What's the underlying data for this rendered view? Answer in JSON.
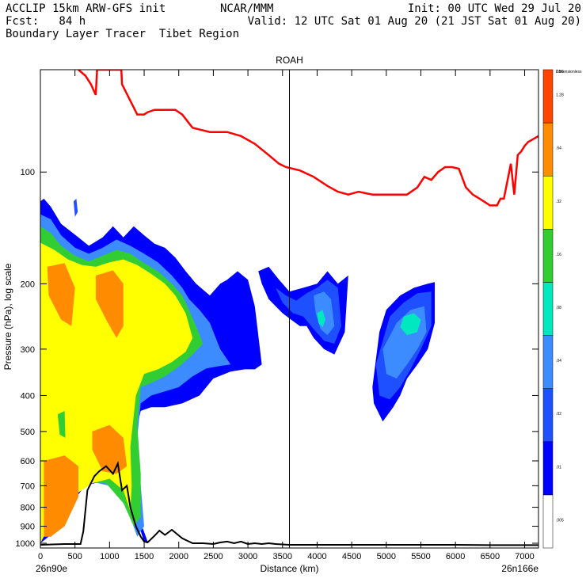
{
  "header": {
    "line1_left": "ACCLIP 15km ARW-GFS init",
    "line1_center": "NCAR/MMM",
    "line1_right": "Init: 00 UTC Wed 29 Jul 20",
    "line2_left": "Fcst:   84 h",
    "line2_right": "Valid: 12 UTC Sat 01 Aug 20 (21 JST Sat 01 Aug 20)",
    "line3_left": "Boundary Layer Tracer  Tibet Region"
  },
  "chart_data": {
    "type": "heatmap",
    "title": "ROAH",
    "xlabel": "Distance (km)",
    "ylabel": "Pressure (hPa), log scale",
    "x_start_label": "26n90e",
    "x_end_label": "26n166e",
    "xlim": [
      0,
      7200
    ],
    "ylim": [
      1030,
      53
    ],
    "y_scale": "log",
    "x_ticks": [
      0,
      500,
      1000,
      1500,
      2000,
      2500,
      3000,
      3500,
      4000,
      4500,
      5000,
      5500,
      6000,
      6500,
      7000
    ],
    "y_ticks": [
      100,
      200,
      300,
      400,
      500,
      600,
      700,
      800,
      900,
      1000
    ],
    "vertical_marker_x": 3600,
    "colorbar": {
      "levels": [
        ".005",
        ".01",
        ".02",
        ".04",
        ".08",
        ".16",
        ".32",
        ".64",
        "1.28",
        "2.56",
        "Dimensionless"
      ],
      "colors": [
        "#ffffff",
        "#0000ff",
        "#1e50ff",
        "#3c8cff",
        "#00e8c0",
        "#32cd32",
        "#ffff00",
        "#ff8c00",
        "#ff4500"
      ]
    },
    "tropopause_line": {
      "color": "#ff0000",
      "x": [
        550,
        650,
        730,
        800,
        820,
        1170,
        1180,
        1400,
        1500,
        1550,
        1650,
        1950,
        2050,
        2200,
        2450,
        2700,
        2900,
        3100,
        3300,
        3450,
        3550,
        3650,
        3750,
        3950,
        4150,
        4300,
        4450,
        4600,
        4800,
        5000,
        5300,
        5450,
        5550,
        5650,
        5750,
        5850,
        5950,
        6050,
        6150,
        6250,
        6350,
        6500,
        6600,
        6650,
        6700,
        6800,
        6850,
        6900,
        6950,
        7000,
        7050,
        7100,
        7200
      ],
      "y": [
        53,
        55,
        58,
        62,
        53,
        53,
        58,
        70,
        70,
        69,
        68,
        68,
        70,
        76,
        78,
        78,
        80,
        84,
        90,
        95,
        97,
        98,
        99,
        103,
        109,
        113,
        115,
        113,
        115,
        115,
        115,
        110,
        103,
        105,
        100,
        97,
        97,
        98,
        110,
        115,
        118,
        123,
        123,
        118,
        118,
        95,
        115,
        90,
        88,
        85,
        83,
        82,
        80
      ]
    },
    "terrain_line": {
      "color": "#000000",
      "x": [
        0,
        350,
        580,
        620,
        680,
        780,
        850,
        950,
        1050,
        1120,
        1180,
        1250,
        1300,
        1380,
        1450,
        1500,
        1550,
        1650,
        1720,
        1800,
        1900,
        2050,
        2200,
        2350,
        2500,
        2600,
        2700,
        2800,
        2900,
        3000,
        3100,
        3200,
        3300,
        3400,
        3600,
        4000,
        4500,
        5000,
        5500,
        6000,
        6500,
        7000,
        7200
      ],
      "y": [
        1010,
        1005,
        1005,
        930,
        720,
        660,
        640,
        620,
        650,
        610,
        720,
        700,
        800,
        900,
        960,
        990,
        995,
        955,
        925,
        950,
        920,
        970,
        1000,
        1000,
        1005,
        995,
        990,
        1000,
        990,
        1005,
        1000,
        1005,
        1000,
        1005,
        1010,
        1010,
        1010,
        1010,
        1010,
        1010,
        1012,
        1012,
        1012
      ]
    },
    "plumes": [
      {
        "level": 0.01,
        "x": [
          0,
          50,
          150,
          300,
          550,
          700,
          900,
          1050,
          1200,
          1350,
          1500,
          1650,
          1800,
          1950,
          2100,
          2250,
          2450,
          2600,
          2700,
          2850,
          3000,
          3100,
          3200,
          3100,
          2950,
          2750,
          2500,
          2300,
          2050,
          1800,
          1600,
          1450,
          1380,
          1350,
          1380,
          1450,
          1550,
          1500,
          1350,
          1150,
          900,
          650,
          400,
          150,
          0
        ],
        "y": [
          120,
          118,
          124,
          138,
          150,
          158,
          150,
          140,
          150,
          140,
          148,
          156,
          160,
          170,
          185,
          200,
          215,
          200,
          195,
          185,
          195,
          230,
          330,
          340,
          340,
          345,
          360,
          400,
          420,
          430,
          430,
          440,
          500,
          650,
          800,
          880,
          990,
          995,
          800,
          700,
          680,
          700,
          800,
          950,
          1000
        ]
      },
      {
        "level": 0.04,
        "x": [
          0,
          150,
          300,
          500,
          700,
          900,
          1100,
          1300,
          1500,
          1700,
          1900,
          2050,
          2150,
          2300,
          2450,
          2600,
          2750,
          2600,
          2400,
          2200,
          2000,
          1800,
          1600,
          1450,
          1400,
          1450,
          1500,
          1400,
          1250,
          1000,
          700,
          400,
          100,
          0
        ],
        "y": [
          130,
          134,
          148,
          160,
          166,
          160,
          152,
          158,
          166,
          175,
          190,
          205,
          220,
          235,
          255,
          300,
          330,
          333,
          338,
          355,
          380,
          390,
          400,
          420,
          520,
          700,
          900,
          960,
          800,
          700,
          680,
          720,
          850,
          1000
        ]
      },
      {
        "level": 0.16,
        "x": [
          0,
          150,
          300,
          500,
          700,
          900,
          1100,
          1300,
          1500,
          1700,
          1900,
          2050,
          2150,
          2250,
          2350,
          2200,
          2000,
          1800,
          1600,
          1450,
          1400,
          1450,
          1450,
          1350,
          1200,
          950,
          650,
          350,
          100,
          0
        ],
        "y": [
          140,
          146,
          158,
          168,
          174,
          168,
          162,
          166,
          176,
          185,
          200,
          215,
          235,
          260,
          290,
          310,
          335,
          355,
          370,
          380,
          480,
          650,
          850,
          900,
          780,
          690,
          680,
          740,
          880,
          1000
        ]
      },
      {
        "level": 0.32,
        "x": [
          0,
          200,
          400,
          600,
          800,
          1000,
          1200,
          1400,
          1600,
          1800,
          1950,
          2100,
          2200,
          2100,
          1900,
          1700,
          1500,
          1380,
          1300,
          1320,
          1300,
          1200,
          1000,
          750,
          500,
          250,
          100,
          0
        ],
        "y": [
          155,
          162,
          172,
          178,
          180,
          175,
          172,
          178,
          188,
          200,
          215,
          240,
          280,
          305,
          325,
          340,
          350,
          400,
          550,
          700,
          820,
          720,
          670,
          690,
          740,
          820,
          920,
          1000
        ]
      },
      {
        "level": 0.64,
        "x": [
          100,
          350,
          500,
          450,
          300,
          120
        ],
        "y": [
          180,
          176,
          205,
          260,
          250,
          215
        ]
      },
      {
        "level": 0.64,
        "x": [
          800,
          1050,
          1200,
          1200,
          1100,
          950,
          800
        ],
        "y": [
          190,
          184,
          200,
          260,
          280,
          250,
          220
        ]
      },
      {
        "level": 0.64,
        "x": [
          50,
          350,
          550,
          550,
          350,
          150,
          50
        ],
        "y": [
          600,
          580,
          620,
          750,
          900,
          960,
          960
        ]
      },
      {
        "level": 0.64,
        "x": [
          750,
          1000,
          1200,
          1250,
          1100,
          900,
          750
        ],
        "y": [
          500,
          480,
          520,
          620,
          650,
          640,
          560
        ]
      },
      {
        "level": 0.16,
        "x": [
          250,
          350,
          360,
          280
        ],
        "y": [
          450,
          440,
          520,
          510
        ]
      },
      {
        "level": 0.01,
        "x": [
          3150,
          3300,
          3450,
          3600,
          3800,
          4000,
          4150,
          4300,
          4450,
          4400,
          4250,
          4100,
          3950,
          3850,
          3750,
          3600,
          3500,
          3300,
          3200
        ],
        "y": [
          185,
          180,
          195,
          210,
          205,
          200,
          185,
          200,
          190,
          270,
          310,
          300,
          280,
          260,
          260,
          248,
          240,
          220,
          200
        ]
      },
      {
        "level": 0.02,
        "x": [
          3400,
          3550,
          3700,
          3850,
          4000,
          4150,
          4300,
          4350,
          4250,
          4100,
          3950,
          3800,
          3650,
          3500
        ],
        "y": [
          205,
          215,
          222,
          212,
          205,
          195,
          205,
          260,
          290,
          285,
          265,
          245,
          240,
          225
        ]
      },
      {
        "level": 0.04,
        "x": [
          3950,
          4100,
          4200,
          4250,
          4150,
          4050,
          3980
        ],
        "y": [
          215,
          210,
          220,
          260,
          275,
          265,
          240
        ]
      },
      {
        "level": 0.08,
        "x": [
          4000,
          4080,
          4120,
          4080,
          4020
        ],
        "y": [
          240,
          235,
          250,
          262,
          255
        ]
      },
      {
        "level": 0.01,
        "x": [
          5000,
          5200,
          5400,
          5600,
          5700,
          5700,
          5600,
          5450,
          5300,
          5200,
          5100,
          4950,
          4820,
          4800,
          4850,
          4900
        ],
        "y": [
          235,
          215,
          205,
          200,
          198,
          255,
          300,
          330,
          360,
          400,
          430,
          470,
          420,
          380,
          320,
          270
        ]
      },
      {
        "level": 0.02,
        "x": [
          5050,
          5250,
          5450,
          5650,
          5650,
          5500,
          5350,
          5200,
          5050,
          4900,
          4850
        ],
        "y": [
          245,
          225,
          212,
          210,
          260,
          300,
          340,
          380,
          410,
          400,
          330
        ]
      },
      {
        "level": 0.04,
        "x": [
          5150,
          5350,
          5550,
          5580,
          5450,
          5300,
          5150,
          5000,
          4950
        ],
        "y": [
          255,
          235,
          230,
          270,
          300,
          330,
          360,
          350,
          300
        ]
      },
      {
        "level": 0.08,
        "x": [
          5250,
          5400,
          5500,
          5450,
          5300,
          5200
        ],
        "y": [
          245,
          240,
          250,
          270,
          275,
          262
        ]
      }
    ],
    "small_blue_patches": [
      {
        "level": 0.02,
        "x": [
          480,
          520,
          540,
          500
        ],
        "y": [
          120,
          118,
          128,
          132
        ]
      }
    ]
  }
}
